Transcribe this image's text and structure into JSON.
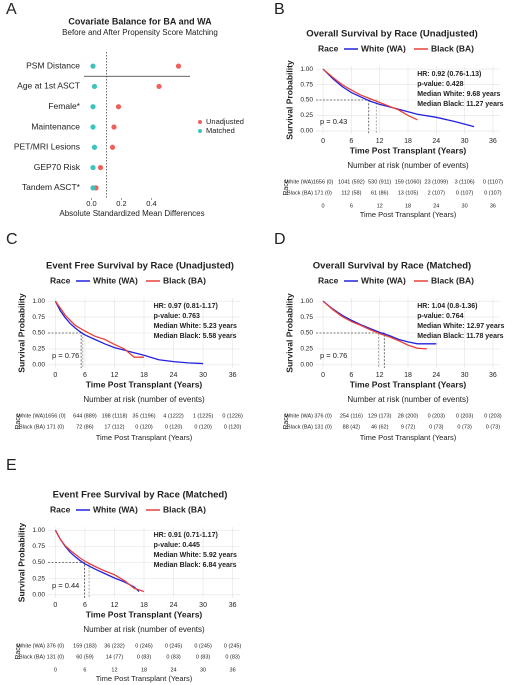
{
  "chart_data": [
    {
      "type": "dot",
      "panel": "A",
      "title": "Covariate Balance for BA and WA",
      "subtitle": "Before and After Propensity Score Matching",
      "x_label": "Absolute Standardized Mean Differences",
      "categories": [
        "PSM Distance",
        "Age at 1st ASCT",
        "Female*",
        "Maintenance",
        "PET/MRI Lesions",
        "GEP70 Risk",
        "Tandem ASCT*"
      ],
      "series": [
        {
          "name": "Unadjusted",
          "color": "#f0605a",
          "values": [
            0.58,
            0.45,
            0.18,
            0.15,
            0.14,
            0.06,
            0.03
          ]
        },
        {
          "name": "Matched",
          "color": "#3cc4bc",
          "values": [
            0.01,
            0.02,
            0.01,
            0.01,
            0.02,
            0.01,
            0.01
          ]
        }
      ],
      "xlim": [
        -0.05,
        0.63
      ],
      "xticks": [
        {
          "value": 0,
          "label": "0.0"
        },
        {
          "value": 0.2,
          "label": "0.2"
        },
        {
          "value": 0.4,
          "label": "0.4"
        }
      ],
      "threshold": 0.1
    },
    {
      "type": "line",
      "panel": "B",
      "title": "Overall Survival by Race (Unadjusted)",
      "legend_title": "Race",
      "x_label": "Time Post Transplant (Years)",
      "y_label": "Survival Probability",
      "series": [
        {
          "name": "White (WA)",
          "color": "#2222dd",
          "x": [
            0,
            2,
            4,
            6,
            8,
            10,
            12,
            14,
            16,
            18,
            20,
            24,
            28,
            32
          ],
          "values": [
            1,
            0.85,
            0.72,
            0.62,
            0.55,
            0.48,
            0.43,
            0.39,
            0.35,
            0.31,
            0.27,
            0.22,
            0.15,
            0.07
          ]
        },
        {
          "name": "Black (BA)",
          "color": "#e8413a",
          "x": [
            0,
            2,
            4,
            6,
            8,
            10,
            12,
            14,
            16,
            18,
            20
          ],
          "values": [
            1,
            0.87,
            0.75,
            0.66,
            0.58,
            0.52,
            0.46,
            0.4,
            0.34,
            0.25,
            0.18
          ]
        }
      ],
      "medians": [
        9.68,
        11.27
      ],
      "annotations": [
        "HR: 0.92 (0.76-1.13)",
        "p-value: 0.428",
        "Median White: 9.68 years",
        "Median Black: 11.27 years"
      ],
      "p_label": "p = 0.43",
      "xlim": [
        -1.5,
        37.5
      ],
      "xticks": [
        0,
        6,
        12,
        18,
        24,
        30,
        36
      ],
      "ylim": [
        -0.05,
        1.05
      ],
      "yticks": [
        {
          "value": 0,
          "label": "0.00"
        },
        {
          "value": 0.25,
          "label": "0.25"
        },
        {
          "value": 0.5,
          "label": "0.50"
        },
        {
          "value": 0.75,
          "label": "0.75"
        },
        {
          "value": 1,
          "label": "1.00"
        }
      ],
      "grid": true,
      "risk_table": {
        "title": "Number at risk (number of events)",
        "rows": [
          [
            "1656 (0)",
            "1041 (592)",
            "530 (911)",
            "159 (1060)",
            "23 (1099)",
            "3 (1106)",
            "0 (1107)"
          ],
          [
            "171 (0)",
            "112 (58)",
            "61 (86)",
            "13 (105)",
            "2 (107)",
            "0 (107)",
            "0 (107)"
          ]
        ],
        "times": [
          0,
          6,
          12,
          18,
          24,
          30,
          36
        ],
        "x_label": "Time Post Transplant (Years)"
      }
    },
    {
      "type": "line",
      "panel": "C",
      "title": "Event Free Survival by Race (Unadjusted)",
      "legend_title": "Race",
      "x_label": "Time Post Transplant (Years)",
      "y_label": "Survival Probability",
      "series": [
        {
          "name": "White (WA)",
          "color": "#2222dd",
          "x": [
            0,
            1,
            2,
            3,
            4,
            5,
            6,
            8,
            10,
            12,
            15,
            18,
            21,
            24,
            27,
            30
          ],
          "values": [
            1,
            0.85,
            0.74,
            0.65,
            0.58,
            0.52,
            0.47,
            0.4,
            0.33,
            0.27,
            0.21,
            0.15,
            0.08,
            0.05,
            0.03,
            0.02
          ]
        },
        {
          "name": "Black (BA)",
          "color": "#e8413a",
          "x": [
            0,
            2,
            4,
            6,
            8,
            10,
            12,
            14,
            16,
            18
          ],
          "values": [
            1,
            0.78,
            0.62,
            0.53,
            0.45,
            0.4,
            0.32,
            0.25,
            0.12,
            0.12
          ]
        }
      ],
      "medians": [
        5.23,
        5.58
      ],
      "annotations": [
        "HR: 0.97 (0.81-1.17)",
        "p-value: 0.763",
        "Median White: 5.23 years",
        "Median Black: 5.58 years"
      ],
      "p_label": "p = 0.76",
      "xlim": [
        -1.5,
        37.5
      ],
      "xticks": [
        0,
        6,
        12,
        18,
        24,
        30,
        36
      ],
      "ylim": [
        -0.05,
        1.05
      ],
      "yticks": [
        {
          "value": 0,
          "label": "0.00"
        },
        {
          "value": 0.25,
          "label": "0.25"
        },
        {
          "value": 0.5,
          "label": "0.50"
        },
        {
          "value": 0.75,
          "label": "0.75"
        },
        {
          "value": 1,
          "label": "1.00"
        }
      ],
      "grid": true,
      "risk_table": {
        "title": "Number at risk (number of events)",
        "rows": [
          [
            "1656 (0)",
            "644 (889)",
            "198 (1118)",
            "35 (1196)",
            "4 (1222)",
            "1 (1225)",
            "0 (1226)"
          ],
          [
            "171 (0)",
            "72 (86)",
            "17 (112)",
            "0 (120)",
            "0 (120)",
            "0 (120)",
            "0 (120)"
          ]
        ],
        "x_label": "Time Post Transplant (Years)"
      }
    },
    {
      "type": "line",
      "panel": "D",
      "title": "Overall Survival by Race (Matched)",
      "legend_title": "Race",
      "x_label": "Time Post Transplant (Years)",
      "y_label": "Survival Probability",
      "series": [
        {
          "name": "White (WA)",
          "color": "#2222dd",
          "x": [
            0,
            2,
            4,
            6,
            8,
            10,
            12,
            14,
            16,
            18,
            20,
            22,
            24
          ],
          "values": [
            1,
            0.88,
            0.78,
            0.7,
            0.63,
            0.57,
            0.51,
            0.46,
            0.4,
            0.36,
            0.33,
            0.33,
            0.33
          ]
        },
        {
          "name": "Black (BA)",
          "color": "#e8413a",
          "x": [
            0,
            2,
            4,
            6,
            8,
            10,
            12,
            14,
            16,
            18,
            20,
            22
          ],
          "values": [
            1,
            0.87,
            0.76,
            0.68,
            0.62,
            0.55,
            0.49,
            0.44,
            0.38,
            0.31,
            0.26,
            0.25
          ]
        }
      ],
      "medians": [
        12.97,
        11.78
      ],
      "annotations": [
        "HR: 1.04 (0.8-1.36)",
        "p-value: 0.764",
        "Median White: 12.97 years",
        "Median Black: 11.78 years"
      ],
      "p_label": "p = 0.76",
      "xlim": [
        -1.5,
        37.5
      ],
      "xticks": [
        0,
        6,
        12,
        18,
        24,
        30,
        36
      ],
      "ylim": [
        -0.05,
        1.05
      ],
      "yticks": [
        {
          "value": 0,
          "label": "0.00"
        },
        {
          "value": 0.25,
          "label": "0.25"
        },
        {
          "value": 0.5,
          "label": "0.50"
        },
        {
          "value": 0.75,
          "label": "0.75"
        },
        {
          "value": 1,
          "label": "1.00"
        }
      ],
      "grid": true,
      "risk_table": {
        "title": "Number at risk (number of events)",
        "rows": [
          [
            "376 (0)",
            "254 (116)",
            "129 (173)",
            "28 (200)",
            "0 (203)",
            "0 (203)",
            "0 (203)"
          ],
          [
            "131 (0)",
            "88 (42)",
            "46 (62)",
            "9 (72)",
            "0 (73)",
            "0 (73)",
            "0 (73)"
          ]
        ],
        "x_label": "Time Post Transplant (Years)"
      }
    },
    {
      "type": "line",
      "panel": "E",
      "title": "Event Free Survival by Race (Matched)",
      "legend_title": "Race",
      "x_label": "Time Post Transplant (Years)",
      "y_label": "Survival Probability",
      "series": [
        {
          "name": "White (WA)",
          "color": "#2222dd",
          "x": [
            0,
            1,
            2,
            3,
            4,
            5,
            6,
            8,
            10,
            12,
            14,
            16,
            17
          ],
          "values": [
            1,
            0.86,
            0.75,
            0.66,
            0.59,
            0.53,
            0.48,
            0.4,
            0.33,
            0.26,
            0.2,
            0.12,
            0.05
          ]
        },
        {
          "name": "Black (BA)",
          "color": "#e8413a",
          "x": [
            0,
            1,
            2,
            3,
            4,
            5,
            6,
            8,
            10,
            12,
            14,
            16,
            18
          ],
          "values": [
            1,
            0.86,
            0.76,
            0.69,
            0.63,
            0.57,
            0.52,
            0.44,
            0.37,
            0.31,
            0.22,
            0.1,
            0.05
          ]
        }
      ],
      "medians": [
        5.92,
        6.84
      ],
      "annotations": [
        "HR: 0.91 (0.71-1.17)",
        "p-value: 0.445",
        "Median White: 5.92 years",
        "Median Black: 6.84 years"
      ],
      "p_label": "p = 0.44",
      "xlim": [
        -1.5,
        37.5
      ],
      "xticks": [
        0,
        6,
        12,
        18,
        24,
        30,
        36
      ],
      "ylim": [
        -0.05,
        1.05
      ],
      "yticks": [
        {
          "value": 0,
          "label": "0.00"
        },
        {
          "value": 0.25,
          "label": "0.25"
        },
        {
          "value": 0.5,
          "label": "0.50"
        },
        {
          "value": 0.75,
          "label": "0.75"
        },
        {
          "value": 1,
          "label": "1.00"
        }
      ],
      "grid": true,
      "risk_table": {
        "title": "Number at risk (number of events)",
        "rows": [
          [
            "376 (0)",
            "159 (183)",
            "36 (232)",
            "0 (245)",
            "0 (245)",
            "0 (245)",
            "0 (245)"
          ],
          [
            "131 (0)",
            "60 (59)",
            "14 (77)",
            "0 (83)",
            "0 (83)",
            "0 (83)",
            "0 (83)"
          ]
        ],
        "times": [
          0,
          6,
          12,
          18,
          24,
          30,
          36
        ],
        "x_label": "Time Post Transplant (Years)"
      }
    }
  ]
}
